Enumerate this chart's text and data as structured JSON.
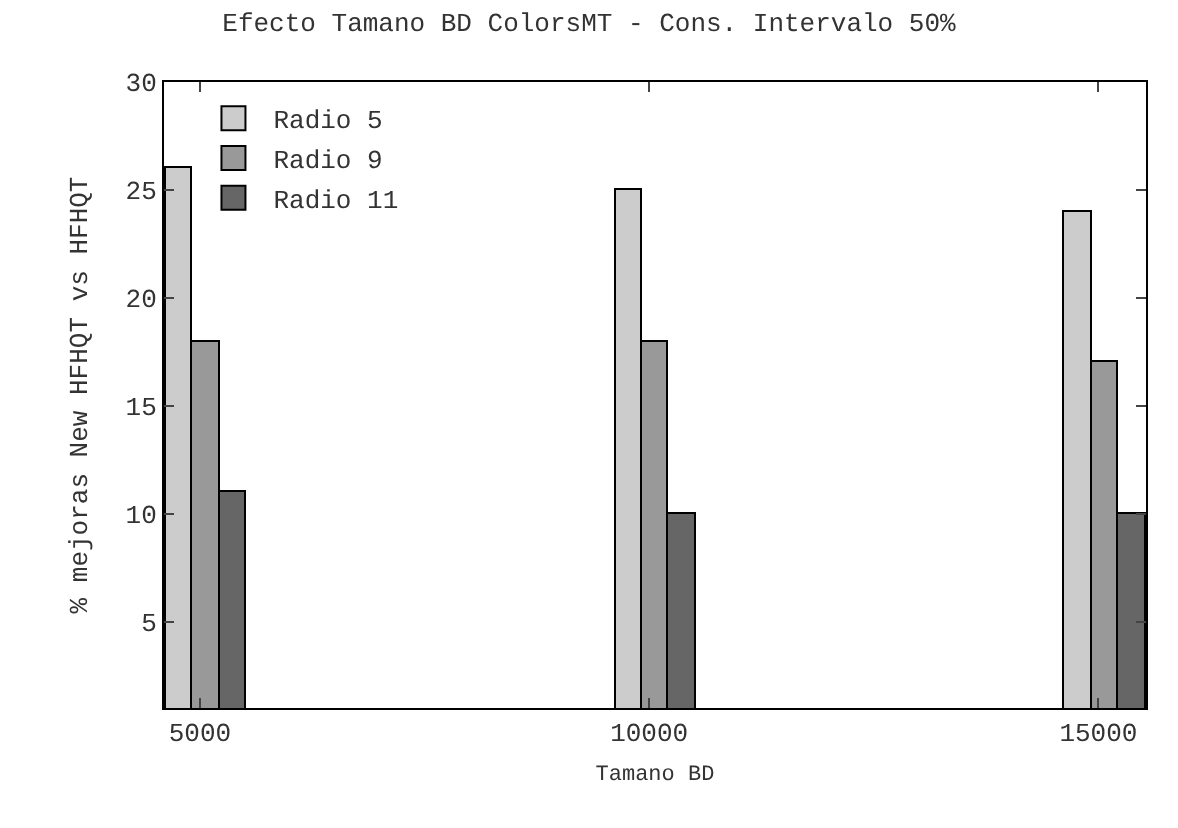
{
  "chart_data": {
    "type": "bar",
    "title": "Efecto Tamano BD ColorsMT - Cons. Intervalo 50%",
    "xlabel": "Tamano BD",
    "ylabel": "% mejoras New HFHQT vs HFHQT",
    "x": [
      5000,
      10000,
      15000
    ],
    "series": [
      {
        "name": "Radio 5",
        "color": "#cccccc",
        "values": [
          26,
          25,
          24
        ]
      },
      {
        "name": "Radio 9",
        "color": "#999999",
        "values": [
          18,
          18,
          17
        ]
      },
      {
        "name": "Radio 11",
        "color": "#666666",
        "values": [
          11,
          10,
          10
        ]
      }
    ],
    "xlim": [
      4600,
      15530
    ],
    "xticks": [
      5000,
      10000,
      15000
    ],
    "ylim": [
      1,
      30
    ],
    "yticks": [
      5,
      10,
      15,
      20,
      25,
      30
    ],
    "legend": "top left"
  }
}
